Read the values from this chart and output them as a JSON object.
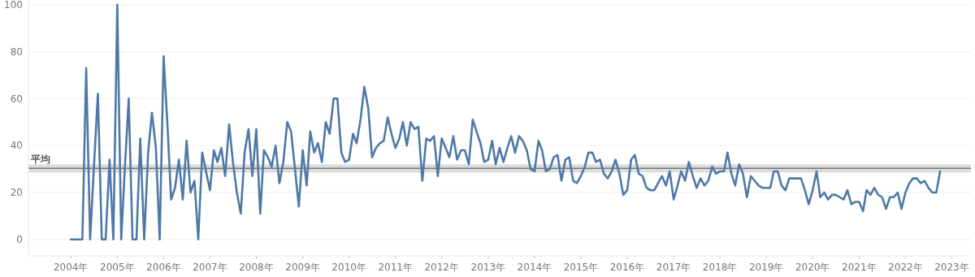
{
  "chart_data": {
    "type": "line",
    "x": [
      "2004-01",
      "2004-02",
      "2004-03",
      "2004-04",
      "2004-05",
      "2004-06",
      "2004-07",
      "2004-08",
      "2004-09",
      "2004-10",
      "2004-11",
      "2004-12",
      "2005-01",
      "2005-02",
      "2005-03",
      "2005-04",
      "2005-05",
      "2005-06",
      "2005-07",
      "2005-08",
      "2005-09",
      "2005-10",
      "2005-11",
      "2005-12",
      "2006-01",
      "2006-02",
      "2006-03",
      "2006-04",
      "2006-05",
      "2006-06",
      "2006-07",
      "2006-08",
      "2006-09",
      "2006-10",
      "2006-11",
      "2006-12",
      "2007-01",
      "2007-02",
      "2007-03",
      "2007-04",
      "2007-05",
      "2007-06",
      "2007-07",
      "2007-08",
      "2007-09",
      "2007-10",
      "2007-11",
      "2007-12",
      "2008-01",
      "2008-02",
      "2008-03",
      "2008-04",
      "2008-05",
      "2008-06",
      "2008-07",
      "2008-08",
      "2008-09",
      "2008-10",
      "2008-11",
      "2008-12",
      "2009-01",
      "2009-02",
      "2009-03",
      "2009-04",
      "2009-05",
      "2009-06",
      "2009-07",
      "2009-08",
      "2009-09",
      "2009-10",
      "2009-11",
      "2009-12",
      "2010-01",
      "2010-02",
      "2010-03",
      "2010-04",
      "2010-05",
      "2010-06",
      "2010-07",
      "2010-08",
      "2010-09",
      "2010-10",
      "2010-11",
      "2010-12",
      "2011-01",
      "2011-02",
      "2011-03",
      "2011-04",
      "2011-05",
      "2011-06",
      "2011-07",
      "2011-08",
      "2011-09",
      "2011-10",
      "2011-11",
      "2011-12",
      "2012-01",
      "2012-02",
      "2012-03",
      "2012-04",
      "2012-05",
      "2012-06",
      "2012-07",
      "2012-08",
      "2012-09",
      "2012-10",
      "2012-11",
      "2012-12",
      "2013-01",
      "2013-02",
      "2013-03",
      "2013-04",
      "2013-05",
      "2013-06",
      "2013-07",
      "2013-08",
      "2013-09",
      "2013-10",
      "2013-11",
      "2013-12",
      "2014-01",
      "2014-02",
      "2014-03",
      "2014-04",
      "2014-05",
      "2014-06",
      "2014-07",
      "2014-08",
      "2014-09",
      "2014-10",
      "2014-11",
      "2014-12",
      "2015-01",
      "2015-02",
      "2015-03",
      "2015-04",
      "2015-05",
      "2015-06",
      "2015-07",
      "2015-08",
      "2015-09",
      "2015-10",
      "2015-11",
      "2015-12",
      "2016-01",
      "2016-02",
      "2016-03",
      "2016-04",
      "2016-05",
      "2016-06",
      "2016-07",
      "2016-08",
      "2016-09",
      "2016-10",
      "2016-11",
      "2016-12",
      "2017-01",
      "2017-02",
      "2017-03",
      "2017-04",
      "2017-05",
      "2017-06",
      "2017-07",
      "2017-08",
      "2017-09",
      "2017-10",
      "2017-11",
      "2017-12",
      "2018-01",
      "2018-02",
      "2018-03",
      "2018-04",
      "2018-05",
      "2018-06",
      "2018-07",
      "2018-08",
      "2018-09",
      "2018-10",
      "2018-11",
      "2018-12",
      "2019-01",
      "2019-02",
      "2019-03",
      "2019-04",
      "2019-05",
      "2019-06",
      "2019-07",
      "2019-08",
      "2019-09",
      "2019-10",
      "2019-11",
      "2019-12",
      "2020-01",
      "2020-02",
      "2020-03",
      "2020-04",
      "2020-05",
      "2020-06",
      "2020-07",
      "2020-08",
      "2020-09",
      "2020-10",
      "2020-11",
      "2020-12",
      "2021-01",
      "2021-02",
      "2021-03",
      "2021-04",
      "2021-05",
      "2021-06",
      "2021-07",
      "2021-08",
      "2021-09",
      "2021-10",
      "2021-11",
      "2021-12",
      "2022-01",
      "2022-02",
      "2022-03",
      "2022-04",
      "2022-05",
      "2022-06",
      "2022-07",
      "2022-08",
      "2022-09",
      "2022-10"
    ],
    "series": [
      {
        "color": "#4e79a7",
        "values": [
          0,
          0,
          0,
          0,
          73,
          0,
          31,
          62,
          0,
          0,
          34,
          0,
          100,
          0,
          30,
          60,
          0,
          0,
          43,
          0,
          37,
          54,
          39,
          0,
          78,
          48,
          17,
          22,
          34,
          17,
          42,
          20,
          25,
          0,
          37,
          29,
          21,
          38,
          33,
          39,
          27,
          49,
          33,
          20,
          11,
          37,
          47,
          27,
          47,
          11,
          38,
          35,
          31,
          40,
          24,
          33,
          50,
          46,
          30,
          14,
          38,
          23,
          46,
          37,
          41,
          33,
          50,
          45,
          60,
          60,
          37,
          33,
          34,
          45,
          41,
          51,
          65,
          56,
          35,
          39,
          41,
          42,
          52,
          45,
          39,
          43,
          50,
          40,
          50,
          47,
          48,
          25,
          43,
          42,
          44,
          27,
          43,
          39,
          35,
          44,
          34,
          38,
          38,
          32,
          51,
          46,
          41,
          33,
          34,
          42,
          32,
          39,
          33,
          39,
          44,
          37,
          44,
          42,
          38,
          30,
          29,
          42,
          38,
          29,
          30,
          35,
          36,
          25,
          34,
          35,
          25,
          24,
          27,
          31,
          37,
          37,
          33,
          34,
          28,
          26,
          29,
          34,
          28,
          19,
          21,
          34,
          36,
          28,
          27,
          22,
          21,
          21,
          24,
          27,
          23,
          29,
          17,
          23,
          29,
          25,
          33,
          27,
          22,
          26,
          23,
          25,
          31,
          28,
          29,
          29,
          37,
          28,
          23,
          32,
          28,
          18,
          27,
          25,
          23,
          22,
          22,
          22,
          29,
          29,
          23,
          21,
          26,
          26,
          26,
          26,
          21,
          15,
          21,
          29,
          18,
          20,
          17,
          19,
          19,
          18,
          17,
          21,
          15,
          16,
          16,
          12,
          21,
          19,
          22,
          19,
          18,
          13,
          18,
          18,
          20,
          13,
          20,
          24,
          26,
          26,
          24,
          25,
          22,
          20,
          20,
          29
        ]
      }
    ],
    "xlim": [
      "2003-02",
      "2023-06"
    ],
    "xticks": [
      {
        "value": "2004",
        "label": "2004年"
      },
      {
        "value": "2005",
        "label": "2005年"
      },
      {
        "value": "2006",
        "label": "2006年"
      },
      {
        "value": "2007",
        "label": "2007年"
      },
      {
        "value": "2008",
        "label": "2008年"
      },
      {
        "value": "2009",
        "label": "2009年"
      },
      {
        "value": "2010",
        "label": "2010年"
      },
      {
        "value": "2011",
        "label": "2011年"
      },
      {
        "value": "2012",
        "label": "2012年"
      },
      {
        "value": "2013",
        "label": "2013年"
      },
      {
        "value": "2014",
        "label": "2014年"
      },
      {
        "value": "2015",
        "label": "2015年"
      },
      {
        "value": "2016",
        "label": "2016年"
      },
      {
        "value": "2017",
        "label": "2017年"
      },
      {
        "value": "2018",
        "label": "2018年"
      },
      {
        "value": "2019",
        "label": "2019年"
      },
      {
        "value": "2020",
        "label": "2020年"
      },
      {
        "value": "2021",
        "label": "2021年"
      },
      {
        "value": "2022",
        "label": "2022年"
      },
      {
        "value": "2023",
        "label": "2023年"
      }
    ],
    "ylim": [
      -7,
      102
    ],
    "yticks": [
      0,
      20,
      40,
      60,
      80,
      100
    ],
    "grid": "y",
    "ref_lines": [
      {
        "axis": "y",
        "value": 30.3,
        "label": "平均",
        "color": "#777777"
      }
    ],
    "bands": [
      {
        "axis": "y",
        "from": 28.5,
        "to": 32,
        "color": "#dddddd"
      }
    ],
    "line_style": "solid",
    "marker": "none"
  }
}
